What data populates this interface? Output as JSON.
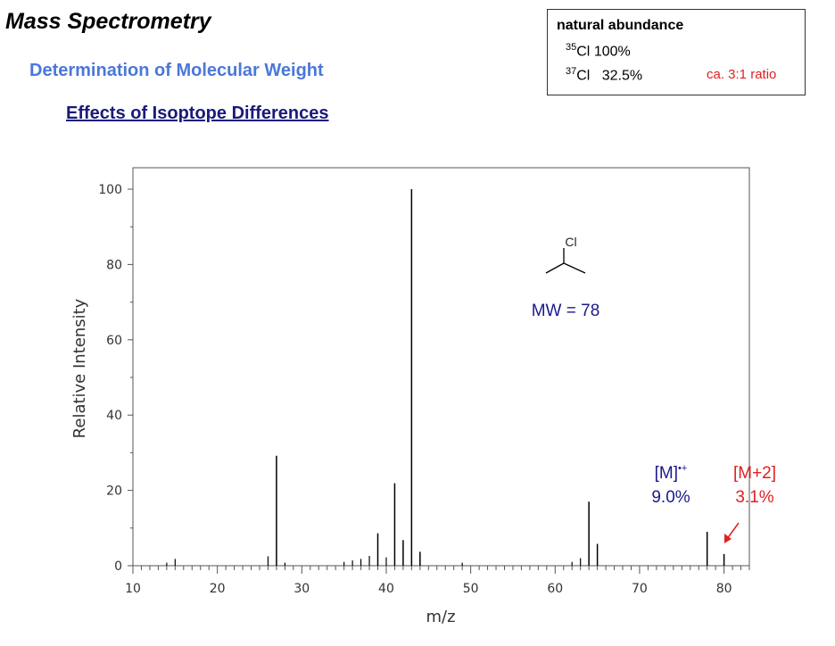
{
  "header": {
    "title": "Mass Spectrometry",
    "subtitle": "Determination of Molecular Weight",
    "section": "Effects of Isoptope Differences"
  },
  "abundance_box": {
    "heading": "natural abundance",
    "rows": [
      {
        "mass": "35",
        "element": "Cl",
        "value": "100%"
      },
      {
        "mass": "37",
        "element": "Cl",
        "value": "32.5%"
      }
    ],
    "ratio_note": "ca. 3:1 ratio"
  },
  "colors": {
    "navy": "#1a1a8a",
    "red": "#e02020",
    "blue_heading": "#4a78d8"
  },
  "chart_data": {
    "type": "bar",
    "xlabel": "m/z",
    "ylabel": "Relative Intensity",
    "xlim": [
      10,
      83
    ],
    "ylim": [
      0,
      100
    ],
    "xticks": [
      10,
      20,
      30,
      40,
      50,
      60,
      70,
      80
    ],
    "yticks": [
      0,
      20,
      40,
      60,
      80,
      100
    ],
    "x": [
      14,
      15,
      26,
      27,
      28,
      35,
      36,
      37,
      38,
      39,
      40,
      41,
      42,
      43,
      44,
      49,
      62,
      63,
      64,
      65,
      78,
      80
    ],
    "values": [
      0.8,
      1.8,
      2.5,
      29.2,
      0.8,
      1.0,
      1.4,
      1.8,
      2.6,
      8.6,
      2.2,
      21.9,
      6.8,
      100,
      3.7,
      0.8,
      1.0,
      2.0,
      17.0,
      5.8,
      9.0,
      3.1
    ],
    "annotations": {
      "molecule_atom": "Cl",
      "mw": "MW = 78",
      "m_label": "[M]",
      "m_sup": "•+",
      "m_value": "9.0%",
      "m2_label": "[M+2]",
      "m2_value": "3.1%"
    }
  }
}
